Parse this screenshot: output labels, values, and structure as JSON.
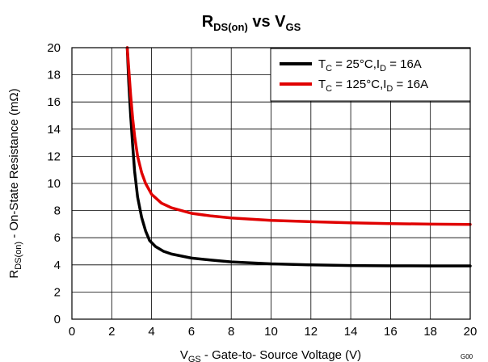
{
  "chart_data": {
    "type": "line",
    "title": {
      "main": "R",
      "sub": "DS(on)",
      "mid": " vs V",
      "sub2": "GS"
    },
    "xlabel": {
      "pre": "V",
      "sub": "GS",
      "post": " - Gate-to- Source Voltage (V)"
    },
    "ylabel": {
      "pre": "R",
      "sub": "DS(on)",
      "post": " - On-State Resistance  (mΩ)"
    },
    "xlim": [
      0,
      20
    ],
    "ylim": [
      0,
      20
    ],
    "xticks": [
      0,
      2,
      4,
      6,
      8,
      10,
      12,
      14,
      16,
      18,
      20
    ],
    "yticks": [
      0,
      2,
      4,
      6,
      8,
      10,
      12,
      14,
      16,
      18,
      20
    ],
    "grid": true,
    "legend_position": "top-right",
    "figure_id": "G00",
    "series": [
      {
        "name": "T_C = 25°C, I_D = 16A",
        "legend": {
          "a": "T",
          "a_sub": "C",
          "b": " = 25°C,I",
          "b_sub": "D",
          "c": " = 16A"
        },
        "color": "#000000",
        "x": [
          2.78,
          2.85,
          2.95,
          3.05,
          3.15,
          3.3,
          3.5,
          3.7,
          3.9,
          4.2,
          4.6,
          5,
          6,
          7,
          8,
          10,
          12,
          14,
          16,
          18,
          20
        ],
        "y": [
          20,
          17.5,
          15,
          12.8,
          10.9,
          9.0,
          7.5,
          6.5,
          5.8,
          5.35,
          5.0,
          4.8,
          4.5,
          4.35,
          4.22,
          4.08,
          4.0,
          3.95,
          3.93,
          3.92,
          3.92
        ]
      },
      {
        "name": "T_C = 125°C, I_D = 16A",
        "legend": {
          "a": "T",
          "a_sub": "C",
          "b": " = 125°C,I",
          "b_sub": "D",
          "c": " = 16A"
        },
        "color": "#e00000",
        "x": [
          2.78,
          2.85,
          2.95,
          3.05,
          3.15,
          3.3,
          3.5,
          3.7,
          4.0,
          4.5,
          5,
          6,
          7,
          8,
          10,
          12,
          14,
          16,
          18,
          20
        ],
        "y": [
          20,
          18.5,
          16.5,
          14.8,
          13.5,
          12.0,
          10.8,
          10.0,
          9.2,
          8.55,
          8.2,
          7.8,
          7.6,
          7.45,
          7.28,
          7.18,
          7.1,
          7.04,
          7.0,
          6.98
        ]
      }
    ]
  }
}
